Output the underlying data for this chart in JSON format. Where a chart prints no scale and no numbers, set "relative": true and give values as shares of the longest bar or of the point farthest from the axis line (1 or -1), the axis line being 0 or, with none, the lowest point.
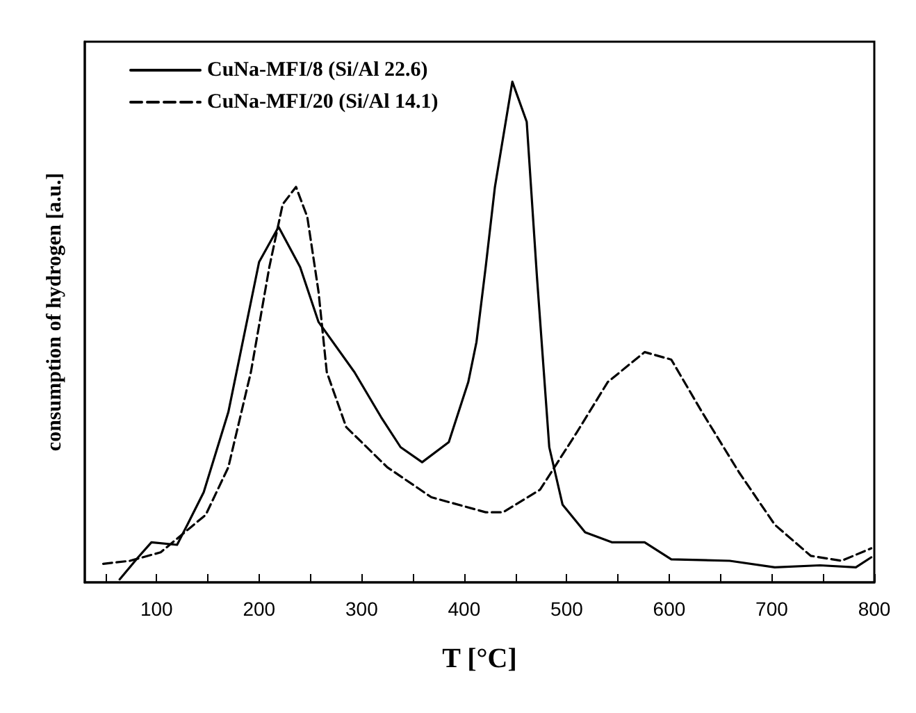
{
  "chart_data": {
    "type": "line",
    "xlabel": "T [°C]",
    "ylabel": "consumption of hydrogen [a.u.]",
    "relative": true,
    "xlim": [
      30,
      800
    ],
    "xticks": [
      {
        "value": 50,
        "label": null
      },
      100,
      {
        "value": 150,
        "label": null
      },
      200,
      {
        "value": 250,
        "label": null
      },
      300,
      {
        "value": 350,
        "label": null
      },
      400,
      {
        "value": 450,
        "label": null
      },
      500,
      {
        "value": 550,
        "label": null
      },
      600,
      {
        "value": 650,
        "label": null
      },
      700,
      {
        "value": 750,
        "label": null
      },
      800
    ],
    "grid": false,
    "legend": "top left",
    "marker": "none",
    "series": [
      {
        "name": "CuNa-MFI/8 (Si/Al 22.6)",
        "color": "#000000",
        "line_style": "solid",
        "x": [
          64,
          82,
          95,
          120,
          130,
          146,
          170,
          200,
          219,
          240,
          258,
          293,
          319,
          338,
          359,
          385,
          404,
          412,
          421,
          430,
          447,
          461,
          471,
          483,
          496,
          518,
          544,
          576,
          602,
          659,
          703,
          747,
          782,
          797
        ],
        "values": [
          0.006,
          0.05,
          0.08,
          0.075,
          0.115,
          0.18,
          0.34,
          0.64,
          0.71,
          0.63,
          0.52,
          0.42,
          0.33,
          0.27,
          0.24,
          0.28,
          0.4,
          0.48,
          0.63,
          0.79,
          1,
          0.92,
          0.61,
          0.27,
          0.155,
          0.1,
          0.08,
          0.08,
          0.046,
          0.043,
          0.03,
          0.034,
          0.03,
          0.05
        ]
      },
      {
        "name": "CuNa-MFI/20 (Si/Al 14.1)",
        "color": "#000000",
        "line_style": "dashed",
        "x": [
          48,
          74,
          104,
          148,
          170,
          192,
          210,
          223,
          236,
          247,
          258,
          266,
          285,
          325,
          368,
          421,
          438,
          474,
          510,
          540,
          576,
          602,
          632,
          668,
          703,
          738,
          768,
          797
        ],
        "values": [
          0.037,
          0.043,
          0.06,
          0.135,
          0.23,
          0.42,
          0.63,
          0.755,
          0.79,
          0.73,
          0.58,
          0.42,
          0.31,
          0.23,
          0.17,
          0.14,
          0.14,
          0.185,
          0.3,
          0.4,
          0.46,
          0.445,
          0.34,
          0.22,
          0.115,
          0.053,
          0.043,
          0.068
        ]
      }
    ]
  }
}
